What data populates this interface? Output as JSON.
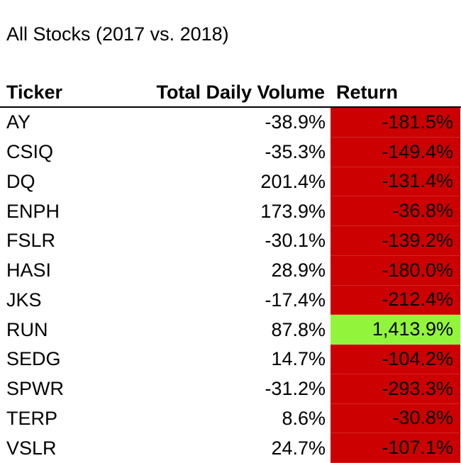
{
  "title": "All Stocks (2017 vs. 2018)",
  "columns": {
    "ticker": "Ticker",
    "volume": "Total Daily Volume",
    "return": "Return"
  },
  "colors": {
    "negative": "#cc0000",
    "positive": "#92f53c"
  },
  "rows": [
    {
      "ticker": "AY",
      "volume": "-38.9%",
      "return": "-181.5%",
      "status": "negative"
    },
    {
      "ticker": "CSIQ",
      "volume": "-35.3%",
      "return": "-149.4%",
      "status": "negative"
    },
    {
      "ticker": "DQ",
      "volume": "201.4%",
      "return": "-131.4%",
      "status": "negative"
    },
    {
      "ticker": "ENPH",
      "volume": "173.9%",
      "return": "-36.8%",
      "status": "negative"
    },
    {
      "ticker": "FSLR",
      "volume": "-30.1%",
      "return": "-139.2%",
      "status": "negative"
    },
    {
      "ticker": "HASI",
      "volume": "28.9%",
      "return": "-180.0%",
      "status": "negative"
    },
    {
      "ticker": "JKS",
      "volume": "-17.4%",
      "return": "-212.4%",
      "status": "negative"
    },
    {
      "ticker": "RUN",
      "volume": "87.8%",
      "return": "1,413.9%",
      "status": "positive"
    },
    {
      "ticker": "SEDG",
      "volume": "14.7%",
      "return": "-104.2%",
      "status": "negative"
    },
    {
      "ticker": "SPWR",
      "volume": "-31.2%",
      "return": "-293.3%",
      "status": "negative"
    },
    {
      "ticker": "TERP",
      "volume": "8.6%",
      "return": "-30.8%",
      "status": "negative"
    },
    {
      "ticker": "VSLR",
      "volume": "24.7%",
      "return": "-107.1%",
      "status": "negative"
    }
  ]
}
